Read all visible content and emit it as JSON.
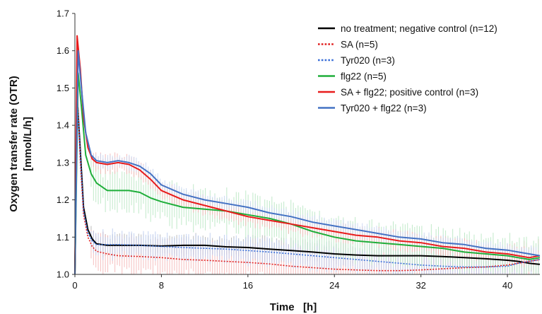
{
  "chart_data": {
    "type": "line",
    "title": "",
    "xlabel": "Time   [h]",
    "ylabel_line1": "Oxygen transfer rate (OTR)",
    "ylabel_line2": "[mmol/L/h]",
    "xlim": [
      0,
      43
    ],
    "ylim": [
      1.0,
      1.7
    ],
    "xticks": [
      "0",
      "8",
      "16",
      "24",
      "32",
      "40"
    ],
    "xtick_values": [
      0,
      8,
      16,
      24,
      32,
      40
    ],
    "yticks": [
      "1.0",
      "1.1",
      "1.2",
      "1.3",
      "1.4",
      "1.5",
      "1.6",
      "1.7"
    ],
    "ytick_values": [
      1.0,
      1.1,
      1.2,
      1.3,
      1.4,
      1.5,
      1.6,
      1.7
    ],
    "grid": false,
    "legend_position": "top-right",
    "series": [
      {
        "name": "no treatment; negative control (n=12)",
        "color": "#000000",
        "dash": "solid",
        "error_color": "#b0b0b0",
        "x": [
          0,
          0.2,
          0.5,
          0.8,
          1.2,
          1.6,
          2,
          3,
          4,
          6,
          8,
          10,
          12,
          14,
          16,
          18,
          20,
          22,
          24,
          26,
          28,
          30,
          32,
          34,
          36,
          38,
          40,
          41,
          42,
          43
        ],
        "y": [
          1.0,
          1.48,
          1.33,
          1.18,
          1.12,
          1.095,
          1.082,
          1.078,
          1.078,
          1.078,
          1.076,
          1.078,
          1.078,
          1.074,
          1.072,
          1.068,
          1.064,
          1.06,
          1.055,
          1.052,
          1.05,
          1.05,
          1.05,
          1.048,
          1.045,
          1.042,
          1.038,
          1.035,
          1.03,
          1.027
        ],
        "error": 0.025
      },
      {
        "name": "SA (n=5)",
        "color": "#e02020",
        "dash": "dotted",
        "error_color": "#f4b4b4",
        "x": [
          0,
          0.2,
          0.5,
          0.8,
          1.2,
          1.6,
          2,
          3,
          4,
          6,
          8,
          10,
          12,
          14,
          16,
          18,
          20,
          22,
          24,
          26,
          28,
          30,
          32,
          34,
          36,
          38,
          40,
          41,
          42,
          43
        ],
        "y": [
          1.0,
          1.5,
          1.3,
          1.16,
          1.1,
          1.075,
          1.062,
          1.055,
          1.05,
          1.048,
          1.045,
          1.04,
          1.038,
          1.035,
          1.032,
          1.028,
          1.022,
          1.018,
          1.014,
          1.012,
          1.01,
          1.01,
          1.012,
          1.015,
          1.018,
          1.02,
          1.025,
          1.03,
          1.035,
          1.04
        ],
        "error": 0.04
      },
      {
        "name": "Tyr020 (n=3)",
        "color": "#3a6fd8",
        "dash": "dotted",
        "error_color": "#b8c9ee",
        "x": [
          0,
          0.2,
          0.5,
          0.8,
          1.2,
          1.6,
          2,
          3,
          4,
          6,
          8,
          10,
          12,
          14,
          16,
          18,
          20,
          22,
          24,
          26,
          28,
          30,
          32,
          34,
          36,
          38,
          40,
          41,
          42,
          43
        ],
        "y": [
          1.0,
          1.48,
          1.32,
          1.17,
          1.11,
          1.09,
          1.08,
          1.08,
          1.08,
          1.078,
          1.075,
          1.072,
          1.07,
          1.068,
          1.064,
          1.06,
          1.055,
          1.05,
          1.045,
          1.04,
          1.035,
          1.03,
          1.025,
          1.022,
          1.02,
          1.02,
          1.022,
          1.03,
          1.035,
          1.04
        ],
        "error": 0.03
      },
      {
        "name": "flg22 (n=5)",
        "color": "#1fae3a",
        "dash": "solid",
        "error_color": "#b6e6c0",
        "x": [
          0,
          0.3,
          0.6,
          1,
          1.5,
          2,
          3,
          4,
          5,
          6,
          7,
          8,
          10,
          12,
          14,
          16,
          18,
          20,
          22,
          24,
          26,
          28,
          30,
          32,
          34,
          36,
          38,
          40,
          41,
          42,
          43
        ],
        "y": [
          1.0,
          1.54,
          1.45,
          1.32,
          1.27,
          1.245,
          1.225,
          1.225,
          1.225,
          1.22,
          1.205,
          1.195,
          1.18,
          1.175,
          1.17,
          1.16,
          1.15,
          1.135,
          1.115,
          1.1,
          1.09,
          1.085,
          1.08,
          1.075,
          1.07,
          1.06,
          1.055,
          1.05,
          1.045,
          1.04,
          1.045
        ],
        "error": 0.045
      },
      {
        "name": "SA + flg22; positive control (n=3)",
        "color": "#e81c1c",
        "dash": "solid",
        "error_color": "#f4b0b0",
        "x": [
          0,
          0.2,
          0.5,
          0.8,
          1.2,
          1.6,
          2,
          3,
          4,
          5,
          6,
          7,
          8,
          10,
          12,
          14,
          16,
          18,
          20,
          22,
          24,
          26,
          28,
          30,
          32,
          34,
          36,
          38,
          40,
          41,
          42,
          43
        ],
        "y": [
          1.0,
          1.64,
          1.55,
          1.42,
          1.34,
          1.31,
          1.3,
          1.295,
          1.3,
          1.295,
          1.28,
          1.255,
          1.225,
          1.2,
          1.185,
          1.17,
          1.155,
          1.145,
          1.135,
          1.125,
          1.115,
          1.105,
          1.1,
          1.09,
          1.085,
          1.075,
          1.07,
          1.06,
          1.055,
          1.05,
          1.045,
          1.05
        ],
        "error": 0.02
      },
      {
        "name": "Tyr020 + flg22 (n=3)",
        "color": "#4472c4",
        "dash": "solid",
        "error_color": "#c5d4f0",
        "x": [
          0,
          0.3,
          0.6,
          1,
          1.5,
          2,
          3,
          4,
          5,
          6,
          7,
          8,
          10,
          12,
          14,
          16,
          18,
          20,
          22,
          24,
          26,
          28,
          30,
          32,
          34,
          36,
          38,
          40,
          41,
          42,
          43
        ],
        "y": [
          1.0,
          1.6,
          1.5,
          1.38,
          1.32,
          1.305,
          1.3,
          1.305,
          1.3,
          1.29,
          1.27,
          1.24,
          1.215,
          1.2,
          1.19,
          1.18,
          1.165,
          1.155,
          1.14,
          1.13,
          1.12,
          1.11,
          1.1,
          1.095,
          1.085,
          1.08,
          1.07,
          1.065,
          1.06,
          1.055,
          1.05
        ],
        "error": 0.015
      }
    ]
  }
}
